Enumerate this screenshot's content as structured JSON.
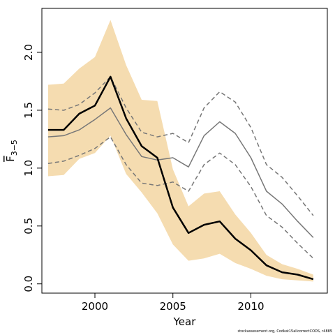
{
  "chart_data": {
    "type": "line",
    "xlabel": "Year",
    "ylabel_main": "F",
    "ylabel_sub": "3−5",
    "xlim": [
      1996.6,
      2014.9
    ],
    "ylim": [
      -0.08,
      2.38
    ],
    "xticks": [
      2000,
      2005,
      2010
    ],
    "xtick_labels": [
      "2000",
      "2005",
      "2010"
    ],
    "yticks": [
      0.0,
      0.5,
      1.0,
      1.5,
      2.0
    ],
    "ytick_labels": [
      "0.0",
      "0.5",
      "1.0",
      "1.5",
      "2.0"
    ],
    "x": [
      1997,
      1998,
      1999,
      2000,
      2001,
      2002,
      2003,
      2004,
      2005,
      2006,
      2007,
      2008,
      2009,
      2010,
      2011,
      2012,
      2013,
      2014
    ],
    "series": [
      {
        "role": "band-upper",
        "color": "#f5dcb0",
        "values": [
          1.72,
          1.73,
          1.86,
          1.96,
          2.28,
          1.89,
          1.59,
          1.58,
          0.99,
          0.67,
          0.78,
          0.8,
          0.6,
          0.44,
          0.25,
          0.17,
          0.13,
          0.08
        ]
      },
      {
        "role": "band-lower",
        "color": "#f5dcb0",
        "values": [
          0.93,
          0.94,
          1.08,
          1.13,
          1.28,
          0.95,
          0.79,
          0.61,
          0.34,
          0.2,
          0.22,
          0.26,
          0.18,
          0.13,
          0.07,
          0.04,
          0.03,
          0.02
        ]
      },
      {
        "role": "estimate",
        "color": "#000000",
        "values": [
          1.33,
          1.33,
          1.47,
          1.54,
          1.79,
          1.43,
          1.19,
          1.09,
          0.66,
          0.44,
          0.51,
          0.54,
          0.39,
          0.29,
          0.16,
          0.1,
          0.08,
          0.04
        ]
      },
      {
        "role": "other-estimate",
        "color": "#777777",
        "values": [
          1.27,
          1.28,
          1.33,
          1.42,
          1.52,
          1.29,
          1.1,
          1.07,
          1.09,
          1.01,
          1.28,
          1.4,
          1.3,
          1.09,
          0.8,
          0.69,
          0.54,
          0.4
        ]
      },
      {
        "role": "other-upper",
        "color": "#777777",
        "values": [
          1.51,
          1.5,
          1.55,
          1.65,
          1.79,
          1.52,
          1.31,
          1.27,
          1.3,
          1.22,
          1.52,
          1.66,
          1.57,
          1.35,
          1.03,
          0.92,
          0.76,
          0.59
        ]
      },
      {
        "role": "other-lower",
        "color": "#777777",
        "values": [
          1.04,
          1.06,
          1.11,
          1.17,
          1.27,
          1.03,
          0.87,
          0.85,
          0.88,
          0.8,
          1.03,
          1.13,
          1.03,
          0.84,
          0.59,
          0.49,
          0.35,
          0.22
        ]
      }
    ]
  },
  "credit": "stockassessment.org, Codkat15allcorrectCODS, r4885"
}
